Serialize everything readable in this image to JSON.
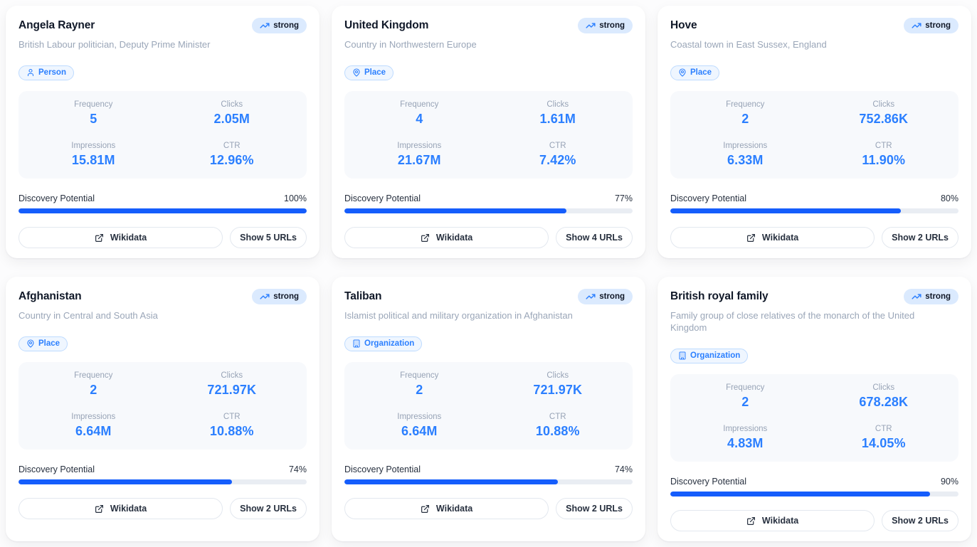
{
  "labels": {
    "frequency": "Frequency",
    "clicks": "Clicks",
    "impressions": "Impressions",
    "ctr": "CTR",
    "discovery_potential": "Discovery Potential",
    "wikidata_button": "Wikidata"
  },
  "colors": {
    "accent_blue": "#2b7fff",
    "progress_fill": "#155dfc",
    "strong_badge_bg": "#dbeafe",
    "type_badge_bg": "#eff6ff",
    "type_badge_border": "#bedbff",
    "metrics_panel_bg": "#f7f9fc",
    "card_bg": "#ffffff"
  },
  "cards": [
    {
      "title": "Angela Rayner",
      "description": "British Labour politician, Deputy Prime Minister",
      "strength_label": "strong",
      "entity_type": "Person",
      "frequency": "5",
      "clicks": "2.05M",
      "impressions": "15.81M",
      "ctr": "12.96%",
      "discovery_percent": 100,
      "discovery_percent_label": "100%",
      "show_urls_label": "Show 5 URLs"
    },
    {
      "title": "United Kingdom",
      "description": "Country in Northwestern Europe",
      "strength_label": "strong",
      "entity_type": "Place",
      "frequency": "4",
      "clicks": "1.61M",
      "impressions": "21.67M",
      "ctr": "7.42%",
      "discovery_percent": 77,
      "discovery_percent_label": "77%",
      "show_urls_label": "Show 4 URLs"
    },
    {
      "title": "Hove",
      "description": "Coastal town in East Sussex, England",
      "strength_label": "strong",
      "entity_type": "Place",
      "frequency": "2",
      "clicks": "752.86K",
      "impressions": "6.33M",
      "ctr": "11.90%",
      "discovery_percent": 80,
      "discovery_percent_label": "80%",
      "show_urls_label": "Show 2 URLs"
    },
    {
      "title": "Afghanistan",
      "description": "Country in Central and South Asia",
      "strength_label": "strong",
      "entity_type": "Place",
      "frequency": "2",
      "clicks": "721.97K",
      "impressions": "6.64M",
      "ctr": "10.88%",
      "discovery_percent": 74,
      "discovery_percent_label": "74%",
      "show_urls_label": "Show 2 URLs"
    },
    {
      "title": "Taliban",
      "description": "Islamist political and military organization in Afghanistan",
      "strength_label": "strong",
      "entity_type": "Organization",
      "frequency": "2",
      "clicks": "721.97K",
      "impressions": "6.64M",
      "ctr": "10.88%",
      "discovery_percent": 74,
      "discovery_percent_label": "74%",
      "show_urls_label": "Show 2 URLs"
    },
    {
      "title": "British royal family",
      "description": "Family group of close relatives of the monarch of the United Kingdom",
      "strength_label": "strong",
      "entity_type": "Organization",
      "frequency": "2",
      "clicks": "678.28K",
      "impressions": "4.83M",
      "ctr": "14.05%",
      "discovery_percent": 90,
      "discovery_percent_label": "90%",
      "show_urls_label": "Show 2 URLs"
    }
  ]
}
